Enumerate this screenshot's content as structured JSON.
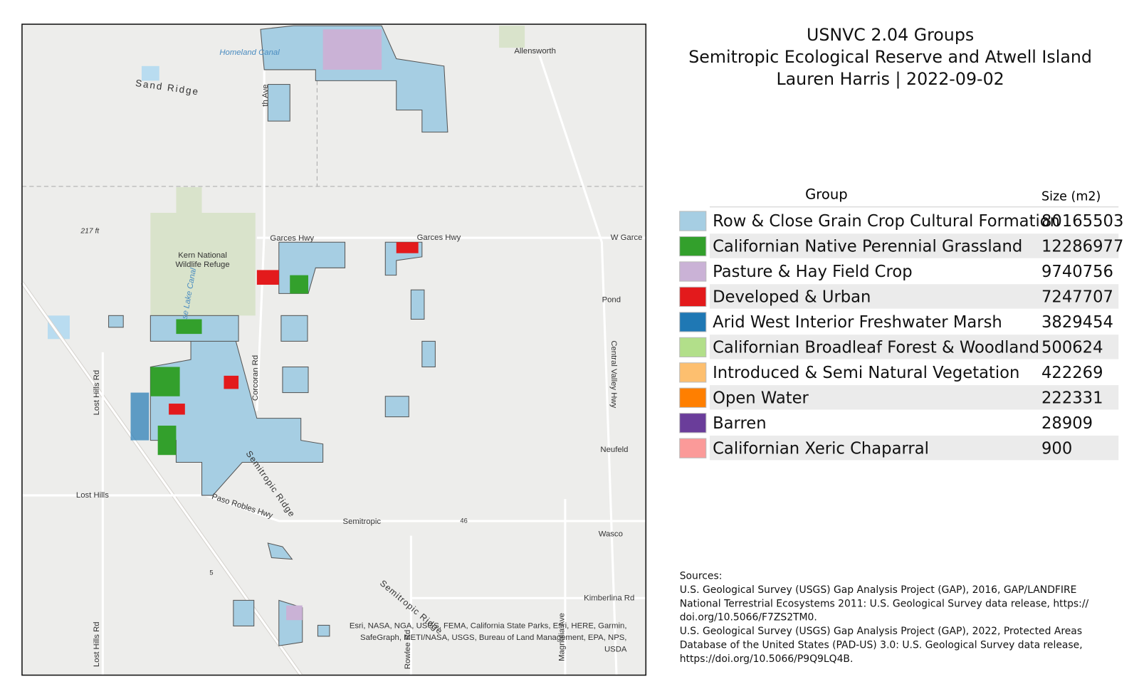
{
  "title": [
    "USNVC 2.04 Groups",
    "Semitropic Ecological Reserve and Atwell Island",
    "Lauren Harris | 2022-09-02"
  ],
  "map": {
    "labels": [
      "Homeland Canal",
      "Allensworth",
      "Sand Ridge",
      "217 ft",
      "Kern National",
      "Wildlife Refuge",
      "Garces Hwy",
      "Garces Hwy",
      "W Garce",
      "Pond",
      "Central Valley Hwy",
      "Neufeld",
      "Lost Hills Rd",
      "Corcoran Rd",
      "Lost Hills",
      "Paso Robles Hwy",
      "Semitropic",
      "46",
      "Wasco",
      "Semitropic Ridge",
      "Semitropic Ridge",
      "5",
      "Kimberlina Rd",
      "Lost Hills Rd",
      "Rowlee Rd",
      "Magnolia Ave",
      "th Ave",
      "se Lake Canal"
    ],
    "attribution": [
      "Esri, NASA, NGA, USGS, FEMA, California State Parks, Esri, HERE, Garmin,",
      "SafeGraph, METI/NASA, USGS, Bureau of Land Management, EPA, NPS,",
      "USDA"
    ]
  },
  "legend": {
    "headers": [
      "Group",
      "Size (m2)"
    ],
    "rows": [
      {
        "name": "Row & Close Grain Crop Cultural Formation",
        "color": "#a6cee3",
        "size": 80165503
      },
      {
        "name": "Californian Native Perennial Grassland",
        "color": "#33a02c",
        "size": 12286977
      },
      {
        "name": "Pasture & Hay Field Crop",
        "color": "#cab2d6",
        "size": 9740756
      },
      {
        "name": "Developed & Urban",
        "color": "#e31a1c",
        "size": 7247707
      },
      {
        "name": "Arid West Interior Freshwater Marsh",
        "color": "#1f78b4",
        "size": 3829454
      },
      {
        "name": "Californian Broadleaf Forest & Woodland",
        "color": "#b2df8a",
        "size": 500624
      },
      {
        "name": "Introduced & Semi Natural Vegetation",
        "color": "#fdbf6f",
        "size": 422269
      },
      {
        "name": "Open Water",
        "color": "#ff7f00",
        "size": 222331
      },
      {
        "name": "Barren",
        "color": "#6a3d9a",
        "size": 28909
      },
      {
        "name": "Californian Xeric Chaparral",
        "color": "#fb9a99",
        "size": 900
      }
    ]
  },
  "sources": {
    "heading": "Sources:",
    "lines": [
      "U.S. Geological Survey (USGS) Gap Analysis Project (GAP), 2016, GAP/LANDFIRE",
      "National Terrestrial Ecosystems 2011: U.S. Geological Survey data release, https://",
      "doi.org/10.5066/F7ZS2TM0.",
      "U.S. Geological Survey (USGS) Gap Analysis Project (GAP), 2022, Protected Areas",
      "Database of the United States (PAD-US) 3.0: U.S. Geological Survey data release,",
      "https://doi.org/10.5066/P9Q9LQ4B."
    ]
  }
}
